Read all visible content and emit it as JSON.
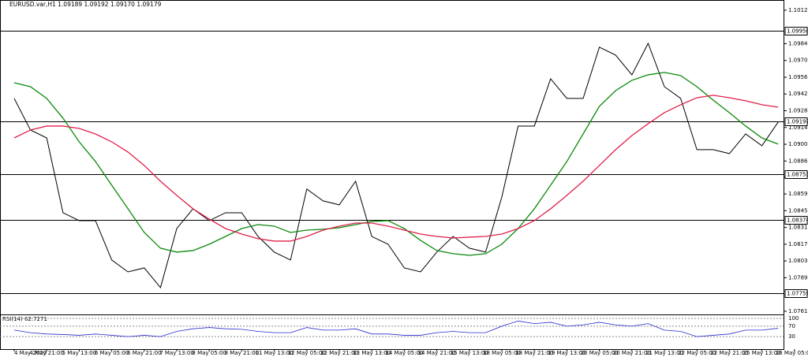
{
  "chart_data": {
    "type": "line",
    "title": "EURUSD.var,H1  1.09189 1.09192 1.09170 1.09179",
    "categories": [
      "4 May 2020",
      null,
      "4 May 21:00",
      null,
      "5 May 13:00",
      null,
      "6 May 05:00",
      null,
      "6 May 21:00",
      null,
      "7 May 13:00",
      null,
      "8 May 05:00",
      null,
      "8 May 21:00",
      null,
      "11 May 13:00",
      null,
      "12 May 05:00",
      null,
      "12 May 21:00",
      null,
      "13 May 13:00",
      null,
      "14 May 05:00",
      null,
      "14 May 21:00",
      null,
      "15 May 13:00",
      null,
      "18 May 05:00",
      null,
      "18 May 21:00",
      null,
      "19 May 13:00",
      null,
      "20 May 05:00",
      null,
      "20 May 21:00",
      null,
      "21 May 13:00",
      null,
      "22 May 05:00",
      null,
      "22 May 21:00",
      null,
      "25 May 13:00",
      null,
      "26 May 05:00"
    ],
    "series": [
      {
        "color": "#000000",
        "values": [
          1.09388,
          1.09124,
          1.09058,
          1.08433,
          1.08367,
          1.08367,
          1.08038,
          1.07939,
          1.07972,
          1.07808,
          1.08301,
          1.08466,
          1.08367,
          1.08433,
          1.08433,
          1.08235,
          1.08104,
          1.08038,
          1.08631,
          1.08532,
          1.08499,
          1.08696,
          1.08235,
          1.0817,
          1.07972,
          1.07939,
          1.08104,
          1.08235,
          1.08137,
          1.08104,
          1.08565,
          1.09157,
          1.09157,
          1.09552,
          1.09388,
          1.09388,
          1.09816,
          1.0975,
          1.09585,
          1.09848,
          1.09486,
          1.09388,
          1.0896,
          1.0896,
          1.08927,
          1.09091,
          1.08993,
          1.0919,
          null
        ]
      },
      {
        "color": "#0a8a0a",
        "values": [
          1.09519,
          1.09486,
          1.09388,
          1.09223,
          1.09025,
          1.08861,
          1.08663,
          1.08466,
          1.08268,
          1.08137,
          1.08104,
          1.08117,
          1.0817,
          1.08235,
          1.08301,
          1.08334,
          1.08321,
          1.08268,
          1.08288,
          1.08295,
          1.08308,
          1.08334,
          1.0836,
          1.08367,
          1.08301,
          1.08202,
          1.08117,
          1.08091,
          1.08077,
          1.08091,
          1.0817,
          1.08301,
          1.08466,
          1.08663,
          1.08861,
          1.09091,
          1.09322,
          1.09453,
          1.09539,
          1.09585,
          1.09605,
          1.09579,
          1.09486,
          1.09374,
          1.09269,
          1.09157,
          1.09058,
          1.09006,
          null
        ]
      },
      {
        "color": "#e0204a",
        "values": [
          1.09058,
          1.09124,
          1.09157,
          1.09157,
          1.09137,
          1.09091,
          1.09025,
          1.0894,
          1.08828,
          1.08696,
          1.08578,
          1.08466,
          1.0838,
          1.08301,
          1.08255,
          1.08216,
          1.08196,
          1.08196,
          1.08235,
          1.08288,
          1.08321,
          1.08347,
          1.08347,
          1.08321,
          1.08288,
          1.08255,
          1.08235,
          1.08222,
          1.08229,
          1.08235,
          1.08255,
          1.08301,
          1.08367,
          1.08466,
          1.08578,
          1.08696,
          1.08828,
          1.0896,
          1.09078,
          1.09177,
          1.09269,
          1.09335,
          1.09394,
          1.09414,
          1.09394,
          1.09368,
          1.09335,
          1.09315,
          null
        ]
      }
    ],
    "ylim": [
      1.0759,
      1.1021
    ],
    "yticks": [
      {
        "value": 1.10125,
        "label": "1.10125"
      },
      {
        "value": 1.09845,
        "label": "1.09845"
      },
      {
        "value": 1.09705,
        "label": "1.09705"
      },
      {
        "value": 1.09565,
        "label": "1.09565"
      },
      {
        "value": 1.09425,
        "label": "1.09425"
      },
      {
        "value": 1.09285,
        "label": "1.09285"
      },
      {
        "value": 1.09145,
        "label": "1.09145"
      },
      {
        "value": 1.09005,
        "label": "1.09005"
      },
      {
        "value": 1.08865,
        "label": "1.08865"
      },
      {
        "value": 1.0873,
        "label": "1.08730"
      },
      {
        "value": 1.0859,
        "label": "1.08590"
      },
      {
        "value": 1.0845,
        "label": "1.08450"
      },
      {
        "value": 1.0831,
        "label": "1.08310"
      },
      {
        "value": 1.0817,
        "label": "1.08170"
      },
      {
        "value": 1.0803,
        "label": "1.08030"
      },
      {
        "value": 1.0789,
        "label": "1.07890"
      },
      {
        "value": 1.0761,
        "label": "1.07610"
      }
    ],
    "levels": [
      {
        "value": 1.0995,
        "label": "1.09950"
      },
      {
        "value": 1.09197,
        "label": "1.09197"
      },
      {
        "value": 1.08753,
        "label": "1.08753"
      },
      {
        "value": 1.08374,
        "label": "1.08374"
      },
      {
        "value": 1.07759,
        "label": "1.07759"
      }
    ],
    "rsi": {
      "title": "RSI(14) 62.7271",
      "color": "#2a2ad0",
      "ylim": [
        0,
        100
      ],
      "yticks": [
        100,
        70,
        30
      ],
      "values": [
        55,
        45,
        40,
        38,
        35,
        40,
        35,
        30,
        35,
        30,
        50,
        60,
        65,
        60,
        58,
        50,
        45,
        45,
        65,
        55,
        55,
        60,
        40,
        40,
        35,
        35,
        45,
        50,
        45,
        45,
        70,
        90,
        80,
        85,
        70,
        75,
        85,
        75,
        70,
        80,
        55,
        50,
        30,
        35,
        40,
        55,
        55,
        62,
        null
      ]
    }
  }
}
